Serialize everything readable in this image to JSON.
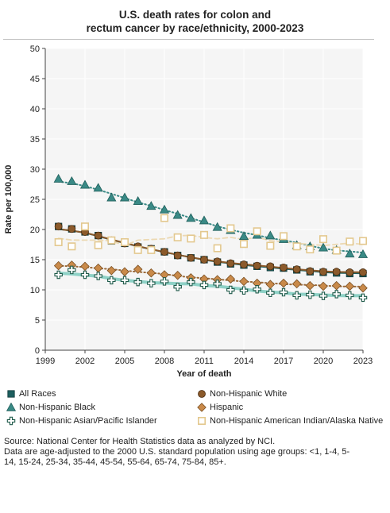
{
  "chart_data": {
    "type": "scatter",
    "title_lines": [
      "U.S. death rates for colon and",
      "rectum cancer by race/ethnicity, 2000-2023"
    ],
    "xlabel": "Year of death",
    "ylabel": "Rate per 100,000",
    "xlim": [
      1999,
      2023
    ],
    "ylim": [
      0,
      50
    ],
    "xticks": [
      "1999",
      "2002",
      "2005",
      "2008",
      "2011",
      "2014",
      "2017",
      "2020",
      "2023"
    ],
    "yticks": [
      "0",
      "5",
      "10",
      "15",
      "20",
      "25",
      "30",
      "35",
      "40",
      "45",
      "50"
    ],
    "grid": true,
    "legend_position": "bottom",
    "x": [
      2000,
      2001,
      2002,
      2003,
      2004,
      2005,
      2006,
      2007,
      2008,
      2009,
      2010,
      2011,
      2012,
      2013,
      2014,
      2015,
      2016,
      2017,
      2018,
      2019,
      2020,
      2021,
      2022,
      2023
    ],
    "series": [
      {
        "name": "All Races",
        "marker": "square",
        "color": "#1d5e5e",
        "trend_color": "#1d5e5e",
        "trend_style": "solid",
        "values": [
          20.5,
          20.1,
          19.6,
          19.0,
          18.1,
          17.7,
          17.1,
          16.8,
          16.3,
          15.7,
          15.3,
          15.0,
          14.6,
          14.3,
          14.1,
          13.9,
          13.7,
          13.6,
          13.3,
          13.0,
          12.9,
          12.8,
          12.7,
          12.7
        ]
      },
      {
        "name": "Non-Hispanic White",
        "marker": "circle",
        "color": "#8b5a2b",
        "trend_color": "#8b5a2b",
        "trend_style": "solid",
        "values": [
          20.5,
          20.1,
          19.6,
          19.0,
          18.2,
          17.7,
          17.2,
          16.8,
          16.3,
          15.7,
          15.3,
          15.0,
          14.7,
          14.4,
          14.2,
          14.0,
          13.9,
          13.7,
          13.4,
          13.1,
          13.0,
          13.0,
          12.9,
          12.9
        ]
      },
      {
        "name": "Non-Hispanic Black",
        "marker": "triangle",
        "color": "#3a8a86",
        "trend_color": "#3a8a86",
        "trend_style": "dotted",
        "values": [
          28.4,
          28.0,
          27.4,
          26.9,
          25.3,
          25.3,
          24.7,
          23.9,
          23.3,
          22.4,
          21.9,
          21.5,
          20.4,
          19.9,
          18.9,
          19.1,
          19.0,
          18.4,
          17.4,
          17.2,
          17.0,
          16.6,
          16.0,
          15.9
        ]
      },
      {
        "name": "Hispanic",
        "marker": "diamond",
        "color": "#c98a4a",
        "trend_color": "#9b6a3a",
        "trend_style": "dotted",
        "values": [
          14.0,
          14.1,
          13.9,
          13.6,
          13.2,
          13.0,
          13.4,
          12.8,
          12.5,
          12.4,
          12.0,
          11.8,
          11.7,
          11.8,
          11.4,
          11.1,
          10.9,
          11.1,
          11.0,
          10.7,
          10.6,
          10.7,
          10.6,
          10.3
        ]
      },
      {
        "name": "Non-Hispanic Asian/Pacific Islander",
        "marker": "plus",
        "color": "#1f5a4a",
        "trend_color": "#8ed1c6",
        "trend_style": "solid",
        "values": [
          12.5,
          13.3,
          12.5,
          12.3,
          11.6,
          11.6,
          11.3,
          11.1,
          11.4,
          10.5,
          11.3,
          10.8,
          11.0,
          10.0,
          9.9,
          10.1,
          9.5,
          9.6,
          9.1,
          9.2,
          9.0,
          9.3,
          9.1,
          8.7
        ]
      },
      {
        "name": "Non-Hispanic American Indian/Alaska Native",
        "marker": "open-square",
        "color": "#e3c88e",
        "trend_color": "#ecd9b3",
        "trend_style": "dashed",
        "values": [
          17.9,
          17.2,
          20.5,
          17.4,
          18.2,
          17.9,
          16.6,
          16.6,
          21.9,
          18.7,
          18.5,
          19.1,
          16.9,
          20.2,
          17.6,
          19.7,
          17.3,
          18.9,
          17.2,
          16.7,
          18.4,
          16.5,
          18.0,
          18.1
        ]
      }
    ]
  },
  "source_lines": [
    "Source: National Center for Health Statistics data as analyzed by NCI.",
    "Data are age-adjusted to the 2000 U.S. standard population using age groups: <1, 1-4, 5-",
    "14, 15-24, 25-34, 35-44, 45-54, 55-64, 65-74, 75-84, 85+."
  ]
}
